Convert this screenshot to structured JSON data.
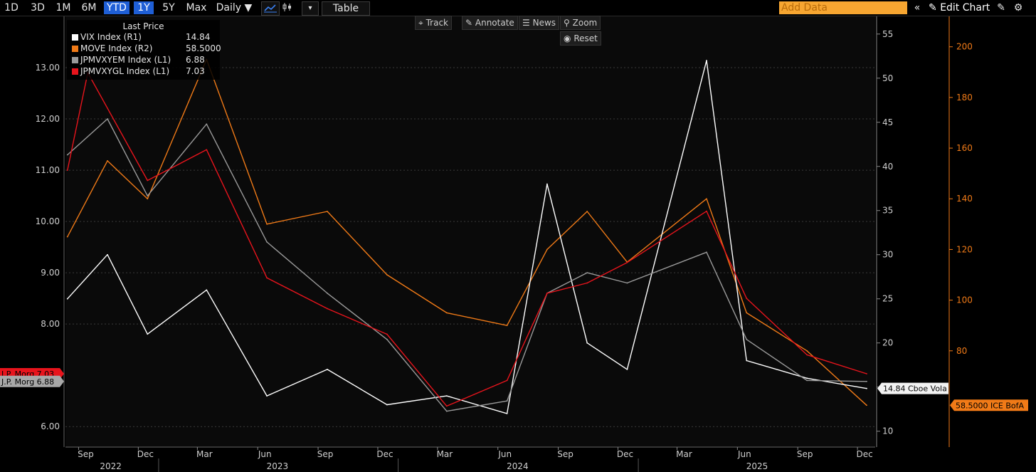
{
  "toolbar": {
    "periods": [
      "1D",
      "3D",
      "1M",
      "6M",
      "YTD",
      "1Y",
      "5Y",
      "Max"
    ],
    "active_periods": [
      "YTD",
      "1Y"
    ],
    "frequency": "Daily",
    "table_label": "Table",
    "add_data_placeholder": "Add Data",
    "edit_chart_label": "Edit Chart"
  },
  "chart_buttons": {
    "track": "Track",
    "annotate": "Annotate",
    "news": "News",
    "zoom": "Zoom",
    "reset": "Reset"
  },
  "legend": {
    "title": "Last Price",
    "rows": [
      {
        "name": "VIX Index  (R1)",
        "value": "14.84",
        "color": "#ffffff"
      },
      {
        "name": "MOVE Index  (R2)",
        "value": "58.5000",
        "color": "#f07a17"
      },
      {
        "name": "JPMVXYEM Index  (L1)",
        "value": "6.88",
        "color": "#9a9a9a"
      },
      {
        "name": "JPMVXYGL Index  (L1)",
        "value": "7.03",
        "color": "#e8141c"
      }
    ]
  },
  "tags": {
    "left_red": "J.P. Morg 7.03",
    "left_gray": "J.P. Morg 6.88",
    "right_white": "14.84 Cboe Vola",
    "right_orange": "58.5000 ICE BofA"
  },
  "chart_data": {
    "type": "line",
    "x_ticks": [
      "Sep",
      "Dec",
      "Mar",
      "Jun",
      "Sep",
      "Dec",
      "Mar",
      "Jun",
      "Sep",
      "Dec",
      "Mar",
      "Jun",
      "Sep",
      "Dec"
    ],
    "years": [
      "2022",
      "2023",
      "2024",
      "2025"
    ],
    "left_axis": {
      "ticks": [
        "6.00",
        "8.00",
        "9.00",
        "10.00",
        "11.00",
        "12.00",
        "13.00"
      ],
      "range": [
        5.6,
        14.0
      ]
    },
    "right1_axis": {
      "ticks": [
        "10",
        "15",
        "20",
        "25",
        "30",
        "35",
        "40",
        "45",
        "50",
        "55"
      ],
      "range": [
        8.2,
        57
      ]
    },
    "right2_axis": {
      "ticks": [
        "80",
        "100",
        "120",
        "140",
        "160",
        "180",
        "200"
      ],
      "range": [
        42,
        212
      ]
    },
    "series": [
      {
        "name": "JPMVXYEM Index",
        "axis": "L1",
        "color": "#9a9a9a",
        "x": [
          "2022-08",
          "2022-10",
          "2022-12",
          "2023-03",
          "2023-06",
          "2023-09",
          "2023-12",
          "2024-03",
          "2024-06",
          "2024-08",
          "2024-10",
          "2024-12",
          "2025-04",
          "2025-06",
          "2025-09",
          "2025-12"
        ],
        "values": [
          11.3,
          12.0,
          10.5,
          11.9,
          9.6,
          8.6,
          7.7,
          6.3,
          6.5,
          8.6,
          9.0,
          8.8,
          9.4,
          7.7,
          6.9,
          6.88
        ]
      },
      {
        "name": "JPMVXYGL Index",
        "axis": "L1",
        "color": "#e8141c",
        "x": [
          "2022-08",
          "2022-09",
          "2022-12",
          "2023-03",
          "2023-06",
          "2023-09",
          "2023-12",
          "2024-03",
          "2024-06",
          "2024-08",
          "2024-10",
          "2024-12",
          "2025-04",
          "2025-06",
          "2025-09",
          "2025-12"
        ],
        "values": [
          11.0,
          12.9,
          10.8,
          11.4,
          8.9,
          8.3,
          7.8,
          6.4,
          6.9,
          8.6,
          8.8,
          9.2,
          10.2,
          8.5,
          7.4,
          7.03
        ]
      },
      {
        "name": "VIX Index",
        "axis": "R1",
        "color": "#ffffff",
        "x": [
          "2022-08",
          "2022-10",
          "2022-12",
          "2023-03",
          "2023-06",
          "2023-09",
          "2023-12",
          "2024-03",
          "2024-06",
          "2024-08",
          "2024-10",
          "2024-12",
          "2025-04",
          "2025-06",
          "2025-09",
          "2025-12"
        ],
        "values": [
          25,
          30,
          21,
          26,
          14,
          17,
          13,
          14,
          12,
          38,
          20,
          17,
          52,
          18,
          16,
          14.84
        ]
      },
      {
        "name": "MOVE Index",
        "axis": "R2",
        "color": "#f07a17",
        "x": [
          "2022-08",
          "2022-10",
          "2022-12",
          "2023-03",
          "2023-06",
          "2023-09",
          "2023-12",
          "2024-03",
          "2024-06",
          "2024-08",
          "2024-10",
          "2024-12",
          "2025-04",
          "2025-06",
          "2025-09",
          "2025-12"
        ],
        "values": [
          125,
          155,
          140,
          195,
          130,
          135,
          110,
          95,
          90,
          120,
          135,
          115,
          140,
          95,
          80,
          58.5
        ]
      }
    ]
  }
}
